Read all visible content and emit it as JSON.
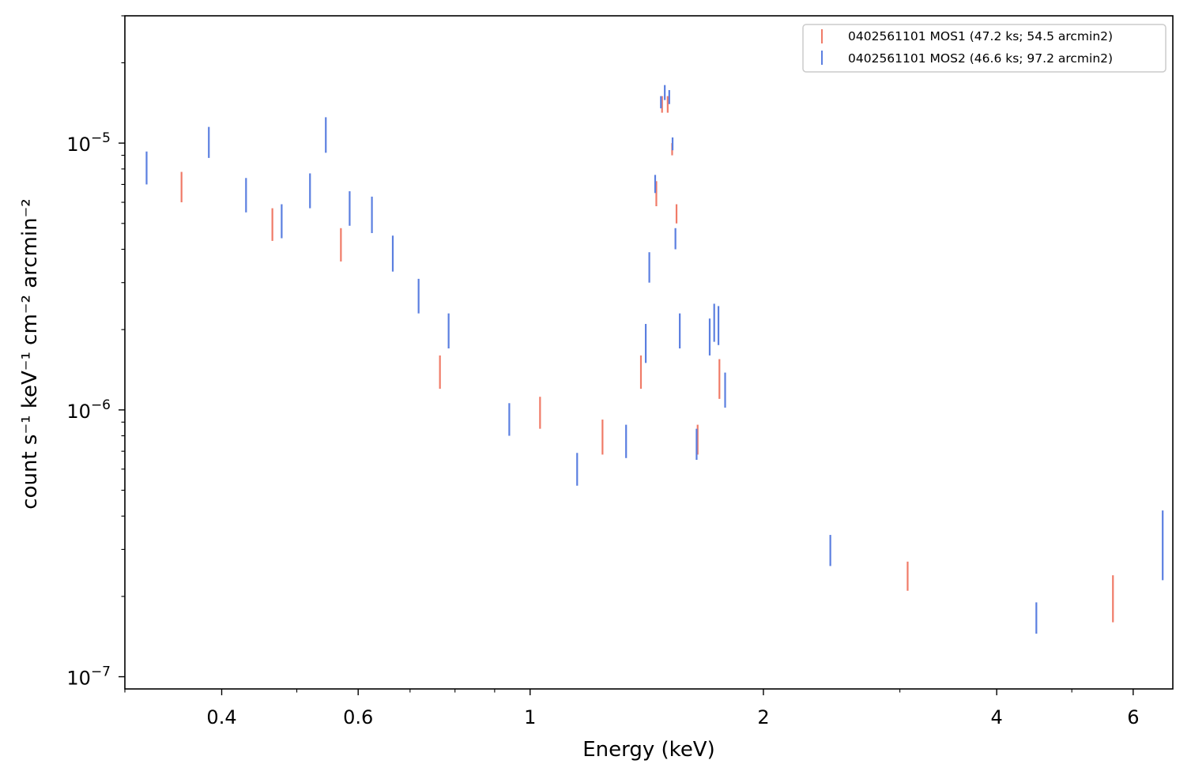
{
  "chart_data": {
    "type": "scatter",
    "style": "error-bars",
    "xlabel": "Energy (keV)",
    "ylabel": "count s⁻¹ keV⁻¹ cm⁻² arcmin⁻²",
    "xscale": "log",
    "yscale": "log",
    "xlim": [
      0.3,
      6.75
    ],
    "ylim": [
      9e-08,
      3e-05
    ],
    "x_major_ticks": [
      {
        "value": 0.4,
        "label": "0.4"
      },
      {
        "value": 0.6,
        "label": "0.6"
      },
      {
        "value": 1,
        "label": "1"
      },
      {
        "value": 2,
        "label": "2"
      },
      {
        "value": 4,
        "label": "4"
      },
      {
        "value": 6,
        "label": "6"
      }
    ],
    "x_minor_ticks": [
      0.3,
      0.5,
      0.7,
      0.8,
      0.9,
      3,
      5
    ],
    "y_major_ticks": [
      {
        "value": 1e-05,
        "label": "10",
        "exp": "−5"
      },
      {
        "value": 1e-06,
        "label": "10",
        "exp": "−6"
      },
      {
        "value": 1e-07,
        "label": "10",
        "exp": "−7"
      }
    ],
    "y_minor_ticks": [
      2e-07,
      3e-07,
      4e-07,
      5e-07,
      6e-07,
      7e-07,
      8e-07,
      9e-07,
      2e-06,
      3e-06,
      4e-06,
      5e-06,
      6e-06,
      7e-06,
      8e-06,
      9e-06,
      2e-05,
      3e-05
    ],
    "legend_position": "top-right",
    "series": [
      {
        "name": "0402561101 MOS1 (47.2 ks; 54.5 arcmin2)",
        "color": "#f07b68",
        "points": [
          {
            "x": 0.355,
            "ylo": 6e-06,
            "yhi": 7.8e-06
          },
          {
            "x": 0.465,
            "ylo": 4.3e-06,
            "yhi": 5.7e-06
          },
          {
            "x": 0.57,
            "ylo": 3.6e-06,
            "yhi": 4.8e-06
          },
          {
            "x": 0.765,
            "ylo": 1.2e-06,
            "yhi": 1.6e-06
          },
          {
            "x": 1.03,
            "ylo": 8.5e-07,
            "yhi": 1.12e-06
          },
          {
            "x": 1.24,
            "ylo": 6.8e-07,
            "yhi": 9.2e-07
          },
          {
            "x": 1.39,
            "ylo": 1.2e-06,
            "yhi": 1.6e-06
          },
          {
            "x": 1.455,
            "ylo": 5.8e-06,
            "yhi": 7.2e-06
          },
          {
            "x": 1.48,
            "ylo": 1.3e-05,
            "yhi": 1.5e-05
          },
          {
            "x": 1.505,
            "ylo": 1.3e-05,
            "yhi": 1.5e-05
          },
          {
            "x": 1.525,
            "ylo": 9e-06,
            "yhi": 1e-05
          },
          {
            "x": 1.545,
            "ylo": 5e-06,
            "yhi": 5.9e-06
          },
          {
            "x": 1.645,
            "ylo": 6.8e-07,
            "yhi": 8.8e-07
          },
          {
            "x": 1.755,
            "ylo": 1.1e-06,
            "yhi": 1.55e-06
          },
          {
            "x": 3.07,
            "ylo": 2.1e-07,
            "yhi": 2.7e-07
          },
          {
            "x": 5.65,
            "ylo": 1.6e-07,
            "yhi": 2.4e-07
          }
        ]
      },
      {
        "name": "0402561101 MOS2 (46.6 ks; 97.2 arcmin2)",
        "color": "#5b7fe0",
        "points": [
          {
            "x": 0.32,
            "ylo": 7e-06,
            "yhi": 9.3e-06
          },
          {
            "x": 0.385,
            "ylo": 8.8e-06,
            "yhi": 1.15e-05
          },
          {
            "x": 0.43,
            "ylo": 5.5e-06,
            "yhi": 7.4e-06
          },
          {
            "x": 0.478,
            "ylo": 4.4e-06,
            "yhi": 5.9e-06
          },
          {
            "x": 0.52,
            "ylo": 5.7e-06,
            "yhi": 7.7e-06
          },
          {
            "x": 0.545,
            "ylo": 9.2e-06,
            "yhi": 1.25e-05
          },
          {
            "x": 0.585,
            "ylo": 4.9e-06,
            "yhi": 6.6e-06
          },
          {
            "x": 0.625,
            "ylo": 4.6e-06,
            "yhi": 6.3e-06
          },
          {
            "x": 0.665,
            "ylo": 3.3e-06,
            "yhi": 4.5e-06
          },
          {
            "x": 0.718,
            "ylo": 2.3e-06,
            "yhi": 3.1e-06
          },
          {
            "x": 0.785,
            "ylo": 1.7e-06,
            "yhi": 2.3e-06
          },
          {
            "x": 0.94,
            "ylo": 8e-07,
            "yhi": 1.06e-06
          },
          {
            "x": 1.15,
            "ylo": 5.2e-07,
            "yhi": 6.9e-07
          },
          {
            "x": 1.33,
            "ylo": 6.6e-07,
            "yhi": 8.8e-07
          },
          {
            "x": 1.41,
            "ylo": 1.5e-06,
            "yhi": 2.1e-06
          },
          {
            "x": 1.425,
            "ylo": 3e-06,
            "yhi": 3.9e-06
          },
          {
            "x": 1.45,
            "ylo": 6.5e-06,
            "yhi": 7.6e-06
          },
          {
            "x": 1.475,
            "ylo": 1.35e-05,
            "yhi": 1.5e-05
          },
          {
            "x": 1.492,
            "ylo": 1.45e-05,
            "yhi": 1.65e-05
          },
          {
            "x": 1.512,
            "ylo": 1.4e-05,
            "yhi": 1.58e-05
          },
          {
            "x": 1.527,
            "ylo": 9.4e-06,
            "yhi": 1.05e-05
          },
          {
            "x": 1.54,
            "ylo": 4e-06,
            "yhi": 4.8e-06
          },
          {
            "x": 1.56,
            "ylo": 1.7e-06,
            "yhi": 2.3e-06
          },
          {
            "x": 1.64,
            "ylo": 6.5e-07,
            "yhi": 8.5e-07
          },
          {
            "x": 1.705,
            "ylo": 1.6e-06,
            "yhi": 2.2e-06
          },
          {
            "x": 1.728,
            "ylo": 1.8e-06,
            "yhi": 2.5e-06
          },
          {
            "x": 1.75,
            "ylo": 1.75e-06,
            "yhi": 2.45e-06
          },
          {
            "x": 1.785,
            "ylo": 1.02e-06,
            "yhi": 1.38e-06
          },
          {
            "x": 2.44,
            "ylo": 2.6e-07,
            "yhi": 3.4e-07
          },
          {
            "x": 4.5,
            "ylo": 1.45e-07,
            "yhi": 1.9e-07
          },
          {
            "x": 6.55,
            "ylo": 2.3e-07,
            "yhi": 4.2e-07
          }
        ]
      }
    ]
  }
}
